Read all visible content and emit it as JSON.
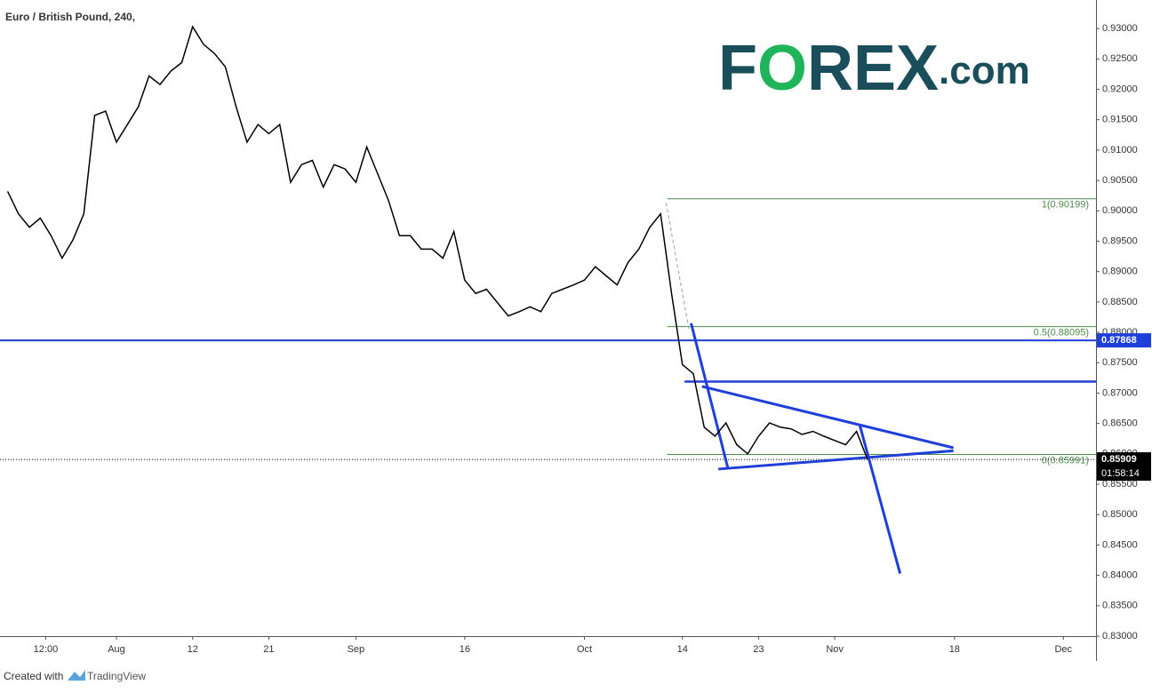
{
  "chart_data": {
    "type": "line",
    "title": "Euro / British Pound, 240,",
    "logo": [
      "F",
      "O",
      "REX",
      ".com"
    ],
    "x": [
      -10,
      -9,
      -8,
      -7,
      -6,
      -5,
      -4,
      -3,
      -2,
      -1,
      0,
      1,
      2,
      3,
      4,
      5,
      6,
      7,
      8,
      9,
      10,
      11,
      12,
      13,
      14,
      15,
      16,
      17,
      18,
      19,
      20,
      21,
      22,
      23,
      24,
      25,
      26,
      27,
      28,
      29,
      30,
      31,
      32,
      33,
      34,
      35,
      36,
      37,
      38,
      39,
      40,
      41,
      42,
      43,
      44,
      45,
      46,
      47,
      48,
      49,
      50,
      51,
      52,
      53,
      54,
      55,
      56,
      57,
      58,
      59,
      60,
      61,
      62,
      63,
      64,
      65,
      66,
      67,
      68,
      69
    ],
    "values": [
      0.9032,
      0.8995,
      0.8973,
      0.8988,
      0.8959,
      0.8922,
      0.8952,
      0.8995,
      0.9157,
      0.9164,
      0.9113,
      0.9142,
      0.9171,
      0.9222,
      0.9208,
      0.923,
      0.9244,
      0.9303,
      0.9274,
      0.9259,
      0.9237,
      0.9171,
      0.9113,
      0.9142,
      0.9127,
      0.9142,
      0.9047,
      0.9076,
      0.9083,
      0.9039,
      0.9076,
      0.9069,
      0.9047,
      0.9105,
      0.9061,
      0.9017,
      0.8959,
      0.8959,
      0.8937,
      0.8937,
      0.8922,
      0.8966,
      0.8886,
      0.8864,
      0.8871,
      0.8849,
      0.8827,
      0.8834,
      0.8842,
      0.8834,
      0.8864,
      0.8871,
      0.8878,
      0.8886,
      0.8908,
      0.8893,
      0.8878,
      0.8915,
      0.8937,
      0.8973,
      0.8995,
      0.8864,
      0.8747,
      0.8732,
      0.8644,
      0.8629,
      0.8651,
      0.8615,
      0.86,
      0.8629,
      0.8651,
      0.8644,
      0.8641,
      0.8632,
      0.8637,
      0.8629,
      0.8622,
      0.8615,
      0.8637,
      0.8591
    ],
    "color": "#000000",
    "xlim": [
      -10.7,
      90
    ],
    "xticks": [
      {
        "value": -6.5,
        "label": "12:00"
      },
      {
        "value": 0,
        "label": "Aug"
      },
      {
        "value": 7,
        "label": "12"
      },
      {
        "value": 14,
        "label": "21"
      },
      {
        "value": 22,
        "label": "Sep"
      },
      {
        "value": 32,
        "label": "16"
      },
      {
        "value": 43,
        "label": "Oct"
      },
      {
        "value": 52,
        "label": "14"
      },
      {
        "value": 59,
        "label": "23"
      },
      {
        "value": 66,
        "label": "Nov"
      },
      {
        "value": 77,
        "label": "18"
      },
      {
        "value": 87,
        "label": "Dec"
      }
    ],
    "ylim": [
      0.83,
      0.9347
    ],
    "yticks": [
      {
        "value": 0.83,
        "label": "0.83000"
      },
      {
        "value": 0.835,
        "label": "0.83500"
      },
      {
        "value": 0.84,
        "label": "0.84000"
      },
      {
        "value": 0.845,
        "label": "0.84500"
      },
      {
        "value": 0.85,
        "label": "0.85000"
      },
      {
        "value": 0.855,
        "label": "0.85500"
      },
      {
        "value": 0.86,
        "label": "0.86000"
      },
      {
        "value": 0.865,
        "label": "0.86500"
      },
      {
        "value": 0.87,
        "label": "0.87000"
      },
      {
        "value": 0.875,
        "label": "0.87500"
      },
      {
        "value": 0.88,
        "label": "0.88000"
      },
      {
        "value": 0.885,
        "label": "0.88500"
      },
      {
        "value": 0.89,
        "label": "0.89000"
      },
      {
        "value": 0.895,
        "label": "0.89500"
      },
      {
        "value": 0.9,
        "label": "0.90000"
      },
      {
        "value": 0.905,
        "label": "0.90500"
      },
      {
        "value": 0.91,
        "label": "0.91000"
      },
      {
        "value": 0.915,
        "label": "0.91500"
      },
      {
        "value": 0.92,
        "label": "0.92000"
      },
      {
        "value": 0.925,
        "label": "0.92500"
      },
      {
        "value": 0.93,
        "label": "0.93000"
      }
    ],
    "fib": {
      "start_x": 50.6,
      "color": "#4c8c4a",
      "levels": [
        {
          "value": 0.90199,
          "label": "1(0.90199)"
        },
        {
          "value": 0.88095,
          "label": "0.5(0.88095)"
        },
        {
          "value": 0.85991,
          "label": "0(0.85991)"
        }
      ]
    },
    "support": {
      "value": 0.87868,
      "color": "#1e3fd8"
    },
    "resistance": {
      "value": 0.8719,
      "start_x": 52.2,
      "color": "#1e3fd8"
    },
    "last_price": {
      "value": 0.85909,
      "timer": "01:58:14"
    },
    "drawings": [
      {
        "color": "#1e3fd8",
        "x": [
          52.8,
          56.2
        ],
        "y": [
          0.8815,
          0.8575
        ]
      },
      {
        "color": "#1e3fd8",
        "x": [
          53.8,
          76.9
        ],
        "y": [
          0.8711,
          0.861
        ]
      },
      {
        "color": "#1e3fd8",
        "x": [
          55.3,
          76.9
        ],
        "y": [
          0.8575,
          0.8605
        ]
      },
      {
        "color": "#1e3fd8",
        "x": [
          68.3,
          72.0
        ],
        "y": [
          0.8647,
          0.8403
        ]
      },
      {
        "color": "#9e9e9e",
        "dashed": true,
        "x": [
          50.5,
          52.6
        ],
        "y": [
          0.9013,
          0.8805
        ]
      }
    ],
    "footer": {
      "prefix": "Created with",
      "brand": "TradingView"
    }
  }
}
